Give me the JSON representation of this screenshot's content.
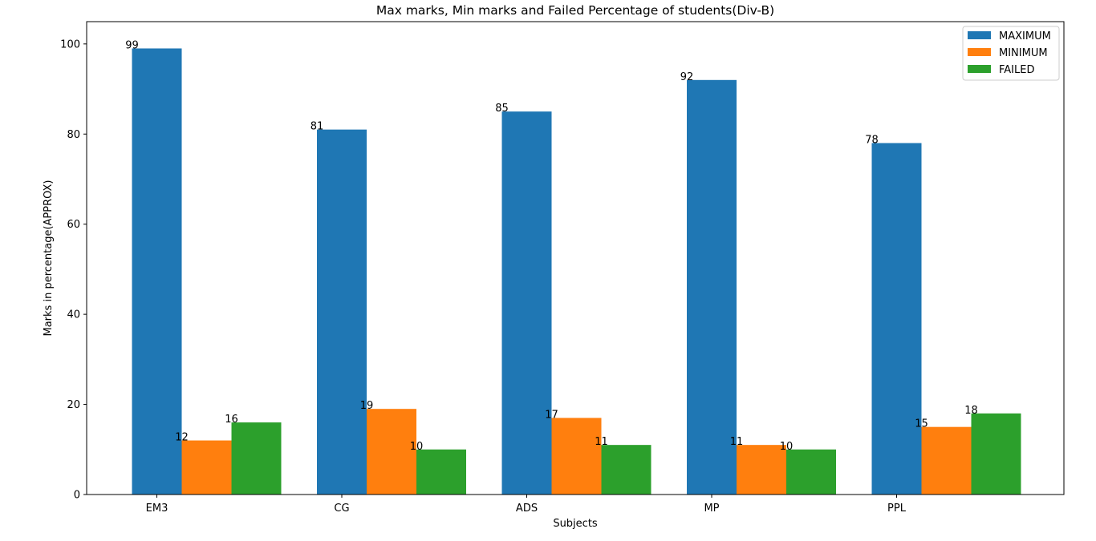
{
  "chart_data": {
    "type": "bar",
    "title": "Max marks, Min marks and Failed Percentage of students(Div-B)",
    "xlabel": "Subjects",
    "ylabel": "Marks in percentage(APPROX)",
    "categories": [
      "EM3",
      "CG",
      "ADS",
      "MP",
      "PPL"
    ],
    "series": [
      {
        "name": "MAXIMUM",
        "color": "#1f77b4",
        "values": [
          99,
          81,
          85,
          92,
          78
        ]
      },
      {
        "name": "MINIMUM",
        "color": "#ff7f0e",
        "values": [
          12,
          19,
          17,
          11,
          15
        ]
      },
      {
        "name": "FAILED",
        "color": "#2ca02c",
        "values": [
          16,
          10,
          11,
          10,
          18
        ]
      }
    ],
    "ylim": [
      0,
      104.95
    ],
    "yticks": [
      0,
      20,
      40,
      60,
      80,
      100
    ],
    "grid": false,
    "legend_position": "top-right"
  }
}
